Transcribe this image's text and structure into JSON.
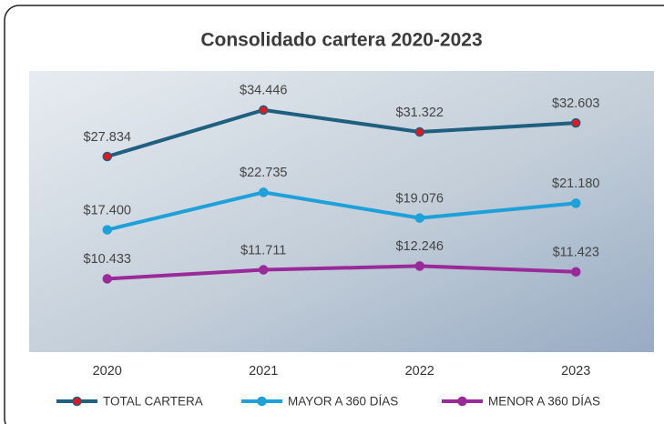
{
  "chart_data": {
    "type": "line",
    "title": "Consolidado cartera 2020-2023",
    "categories": [
      "2020",
      "2021",
      "2022",
      "2023"
    ],
    "ylim": [
      0,
      40000
    ],
    "series": [
      {
        "name": "TOTAL CARTERA",
        "color": "#1f5f80",
        "marker_color": "#e8151b",
        "values": [
          27834,
          34446,
          31322,
          32603
        ],
        "value_labels": [
          "$27.834",
          "$34.446",
          "$31.322",
          "$32.603"
        ]
      },
      {
        "name": "MAYOR A 360 DÍAS",
        "color": "#1ea0d8",
        "values": [
          17400,
          22735,
          19076,
          21180
        ],
        "value_labels": [
          "$17.400",
          "$22.735",
          "$19.076",
          "$21.180"
        ]
      },
      {
        "name": "MENOR A 360 DÍAS",
        "color": "#9a2a9a",
        "values": [
          10433,
          11711,
          12246,
          11423
        ],
        "value_labels": [
          "$10.433",
          "$11.711",
          "$12.246",
          "$11.423"
        ]
      }
    ]
  }
}
